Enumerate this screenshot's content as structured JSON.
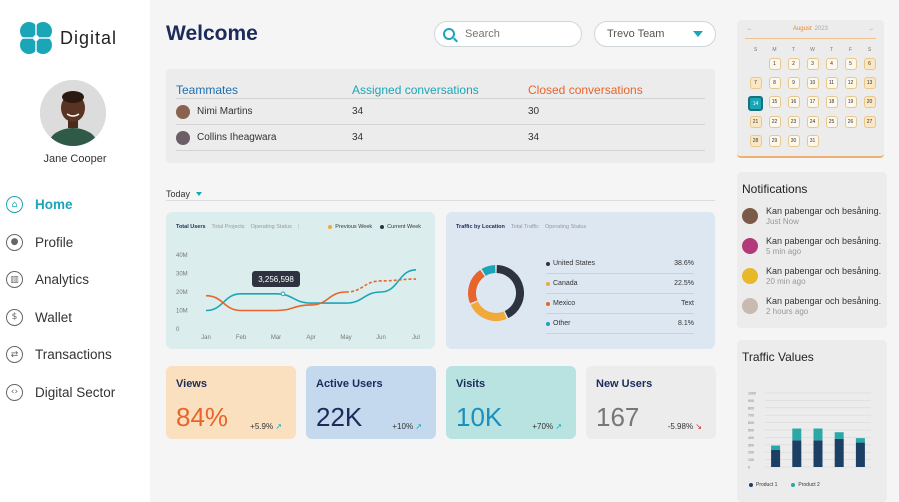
{
  "brand": {
    "name": "Digital"
  },
  "user": {
    "name": "Jane Cooper"
  },
  "nav": [
    {
      "label": "Home",
      "icon": "home-icon",
      "glyph": "⌂",
      "active": true
    },
    {
      "label": "Profile",
      "icon": "user-icon",
      "glyph": "●",
      "active": false
    },
    {
      "label": "Analytics",
      "icon": "analytics-icon",
      "glyph": "▥",
      "active": false
    },
    {
      "label": "Wallet",
      "icon": "dollar-icon",
      "glyph": "$",
      "active": false
    },
    {
      "label": "Transactions",
      "icon": "exchange-icon",
      "glyph": "⇄",
      "active": false
    },
    {
      "label": "Digital Sector",
      "icon": "code-icon",
      "glyph": "‹›",
      "active": false
    }
  ],
  "header": {
    "title": "Welcome",
    "search_placeholder": "Search",
    "team_selected": "Trevo Team"
  },
  "team_table": {
    "headers": [
      "Teammates",
      "Assigned conversations",
      "Closed conversations"
    ],
    "rows": [
      {
        "name": "Nimi Martins",
        "assigned": "34",
        "closed": "30"
      },
      {
        "name": "Collins Iheagwara",
        "assigned": "34",
        "closed": "34"
      }
    ]
  },
  "filter": {
    "period": "Today"
  },
  "users_card": {
    "tabs": [
      "Total Users",
      "Total Projects",
      "Operating Status"
    ],
    "legend": [
      "Previous Week",
      "Current Week"
    ],
    "tooltip": "3,256,598"
  },
  "location_card": {
    "tabs": [
      "Traffic by Location",
      "Total Traffic",
      "Operating Status"
    ],
    "rows": [
      {
        "name": "United States",
        "value": "38.6%"
      },
      {
        "name": "Canada",
        "value": "22.5%"
      },
      {
        "name": "Mexico",
        "value": "Text"
      },
      {
        "name": "Other",
        "value": "8.1%"
      }
    ]
  },
  "kpis": [
    {
      "title": "Views",
      "value": "84%",
      "delta": "+5.9%",
      "bg": "#fbe0bf",
      "color": "#e8642a",
      "negative": false
    },
    {
      "title": "Active Users",
      "value": "22K",
      "delta": "+10%",
      "bg": "#c4d8ee",
      "color": "#1c2b5a",
      "negative": false
    },
    {
      "title": "Visits",
      "value": "10K",
      "delta": "+70%",
      "bg": "#b8e3e0",
      "color": "#1b8fc0",
      "negative": false
    },
    {
      "title": "New Users",
      "value": "167",
      "delta": "-5.98%",
      "bg": "#ececec",
      "color": "#777777",
      "negative": true
    }
  ],
  "calendar": {
    "month": "August",
    "year": "2023",
    "dow": [
      "S",
      "M",
      "T",
      "W",
      "T",
      "F",
      "S"
    ],
    "lead_blanks": 1,
    "days": 31,
    "selected": 14
  },
  "notifications": {
    "title": "Notifications",
    "items": [
      {
        "text": "Kan pabengar och besåning.",
        "time": "Just Now"
      },
      {
        "text": "Kan pabengar och besåning.",
        "time": "5 min ago"
      },
      {
        "text": "Kan pabengar och besåning.",
        "time": "20 min ago"
      },
      {
        "text": "Kan pabengar och besåning.",
        "time": "2 hours ago"
      }
    ]
  },
  "traffic": {
    "title": "Traffic Values",
    "legend": [
      "Product 1",
      "Product 2"
    ]
  },
  "colors": {
    "accent": "#1ba6b8",
    "navy": "#1c2b5a",
    "orange": "#e8642a"
  },
  "chart_data": [
    {
      "type": "line",
      "title": "",
      "categories": [
        "Jan",
        "Feb",
        "Mar",
        "Apr",
        "May",
        "Jun",
        "Jul"
      ],
      "yticks": [
        "0",
        "10M",
        "20M",
        "30M",
        "40M"
      ],
      "ylim": [
        0,
        40
      ],
      "series": [
        {
          "name": "Current Week",
          "color": "#1ba6b8",
          "values": [
            10,
            19,
            19,
            14,
            14,
            20,
            32
          ]
        },
        {
          "name": "Previous Week",
          "color": "#e8642a",
          "values": [
            18,
            10,
            10,
            13,
            20,
            26,
            27
          ]
        }
      ]
    },
    {
      "type": "pie",
      "title": "",
      "slices": [
        {
          "name": "United States",
          "value": 38.6,
          "color": "#2d3440"
        },
        {
          "name": "Canada",
          "value": 22.5,
          "color": "#f0a93a"
        },
        {
          "name": "Mexico",
          "value": 20,
          "color": "#e8642a"
        },
        {
          "name": "Other",
          "value": 8.1,
          "color": "#1ba6b8"
        }
      ]
    },
    {
      "type": "bar",
      "title": "",
      "categories": [
        "A",
        "B",
        "C",
        "D",
        "E"
      ],
      "ylim": [
        0,
        1000
      ],
      "series": [
        {
          "name": "Product 1",
          "color": "#1c3f66",
          "values": [
            230,
            360,
            360,
            380,
            330
          ]
        },
        {
          "name": "Product 2",
          "color": "#2aa7a7",
          "values": [
            60,
            160,
            160,
            90,
            60
          ]
        }
      ]
    }
  ]
}
